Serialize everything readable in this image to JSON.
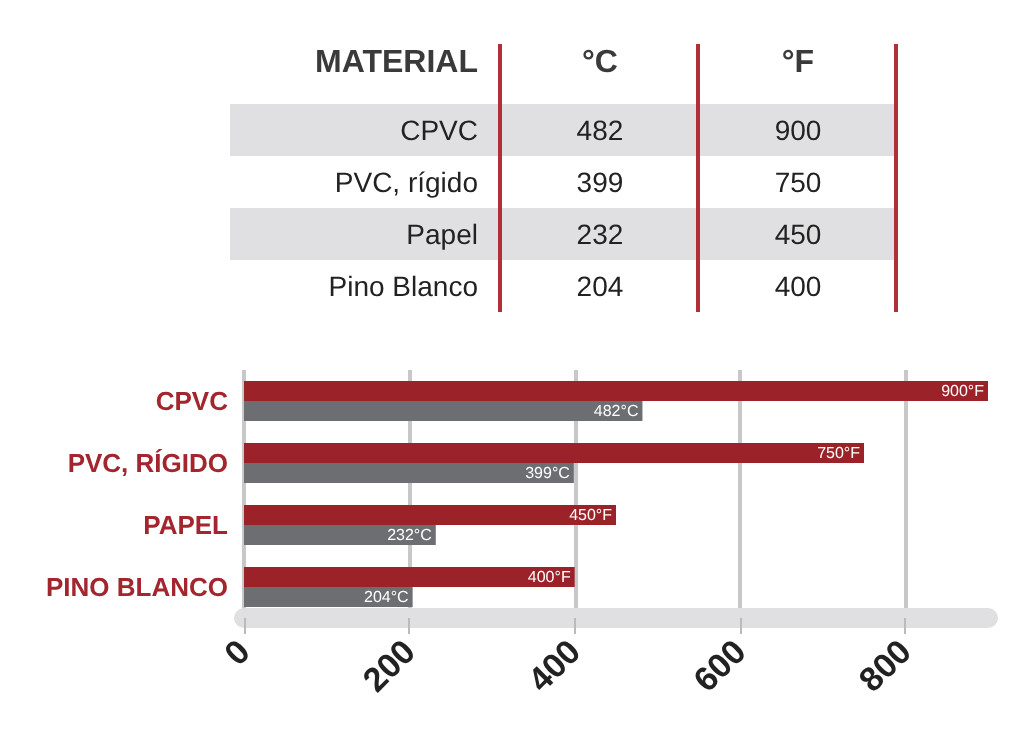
{
  "chart_data": [
    {
      "type": "other",
      "annotations": [
        "MATERIAL",
        "°C",
        "°F",
        "CPVC",
        "482",
        "900",
        "PVC, rígido",
        "399",
        "750",
        "Papel",
        "232",
        "450",
        "Pino Blanco",
        "204",
        "400"
      ]
    },
    {
      "type": "bar",
      "orientation": "horizontal",
      "categories": [
        "CPVC",
        "PVC, RÍGIDO",
        "PAPEL",
        "PINO BLANCO"
      ],
      "series": [
        {
          "color": "#9b2228",
          "values": [
            900,
            750,
            450,
            400
          ],
          "value_labels": [
            "900°F",
            "750°F",
            "450°F",
            "400°F"
          ]
        },
        {
          "color": "#6d6e71",
          "values": [
            482,
            399,
            232,
            204
          ],
          "value_labels": [
            "482°C",
            "399°C",
            "232°C",
            "204°C"
          ]
        }
      ],
      "xlim": [
        0,
        900
      ],
      "xticks": [
        0,
        200,
        400,
        600,
        800
      ],
      "grid": "x"
    }
  ]
}
